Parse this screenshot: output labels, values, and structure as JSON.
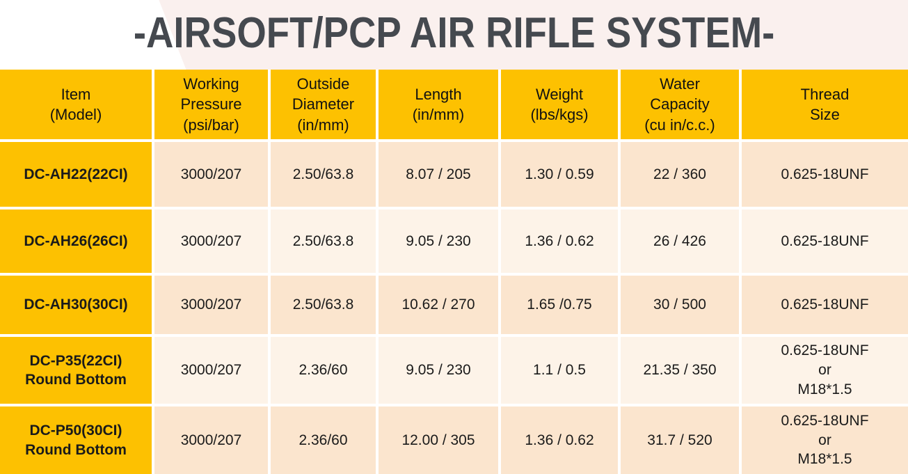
{
  "title": "-AIRSOFT/PCP AIR RIFLE SYSTEM-",
  "colors": {
    "header_gold": "#fdc101",
    "row_peach": "#fbe5ce",
    "row_cream": "#fdf3e8",
    "title_text": "#45494f",
    "cell_text": "#1a1a1a",
    "title_band_pink": "#faf0ee",
    "grid_lines": "#ffffff"
  },
  "table": {
    "headers": [
      "Item\n(Model)",
      "Working\nPressure\n(psi/bar)",
      "Outside\nDiameter\n(in/mm)",
      "Length\n(in/mm)",
      "Weight\n(lbs/kgs)",
      "Water\nCapacity\n(cu in/c.c.)",
      "Thread\nSize"
    ],
    "rows": [
      {
        "cells": [
          "DC-AH22(22CI)",
          "3000/207",
          "2.50/63.8",
          "8.07 / 205",
          "1.30 / 0.59",
          "22 / 360",
          "0.625-18UNF"
        ]
      },
      {
        "cells": [
          "DC-AH26(26CI)",
          "3000/207",
          "2.50/63.8",
          "9.05 / 230",
          "1.36 / 0.62",
          "26 / 426",
          "0.625-18UNF"
        ]
      },
      {
        "cells": [
          "DC-AH30(30CI)",
          "3000/207",
          "2.50/63.8",
          "10.62 / 270",
          "1.65 /0.75",
          "30 / 500",
          "0.625-18UNF"
        ]
      },
      {
        "cells": [
          "DC-P35(22CI)\nRound Bottom",
          "3000/207",
          "2.36/60",
          "9.05 / 230",
          "1.1 / 0.5",
          "21.35 / 350",
          "0.625-18UNF\nor\nM18*1.5"
        ]
      },
      {
        "cells": [
          "DC-P50(30CI)\nRound Bottom",
          "3000/207",
          "2.36/60",
          "12.00 / 305",
          "1.36 / 0.62",
          "31.7 / 520",
          "0.625-18UNF\nor\nM18*1.5"
        ]
      }
    ]
  }
}
